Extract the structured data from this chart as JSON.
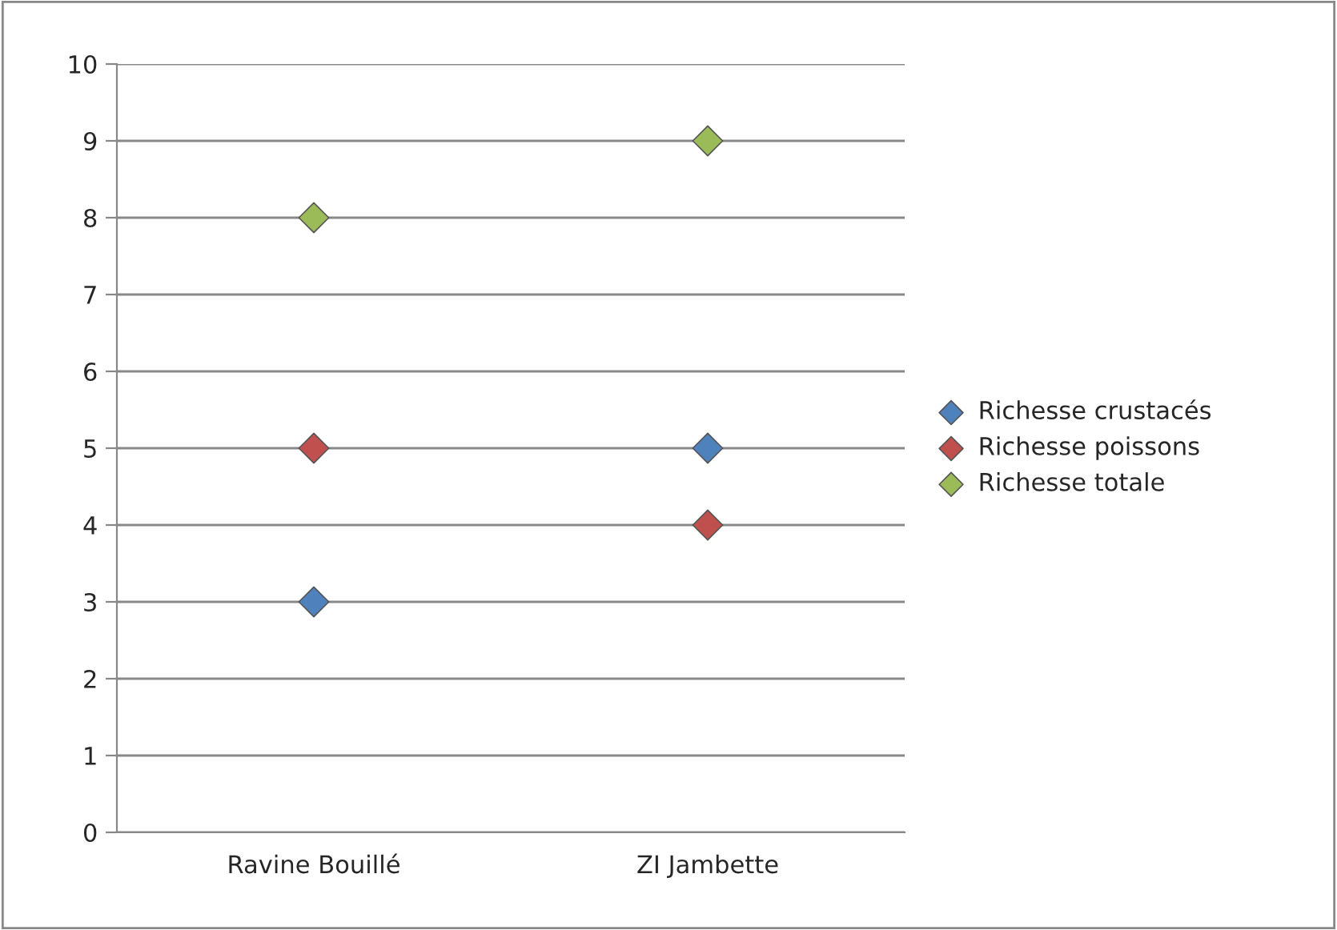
{
  "chart_data": {
    "type": "scatter",
    "categories": [
      "Ravine Bouillé",
      "ZI Jambette"
    ],
    "series": [
      {
        "name": "Richesse crustacés",
        "color": "#4f81bd",
        "values": [
          3,
          5
        ]
      },
      {
        "name": "Richesse poissons",
        "color": "#c0504d",
        "values": [
          5,
          4
        ]
      },
      {
        "name": "Richesse totale",
        "color": "#9bbb59",
        "values": [
          8,
          9
        ]
      }
    ],
    "ylim": [
      0,
      10
    ],
    "yticks": [
      0,
      1,
      2,
      3,
      4,
      5,
      6,
      7,
      8,
      9,
      10
    ],
    "grid": "y",
    "legend": "right",
    "marker": "diamond"
  }
}
